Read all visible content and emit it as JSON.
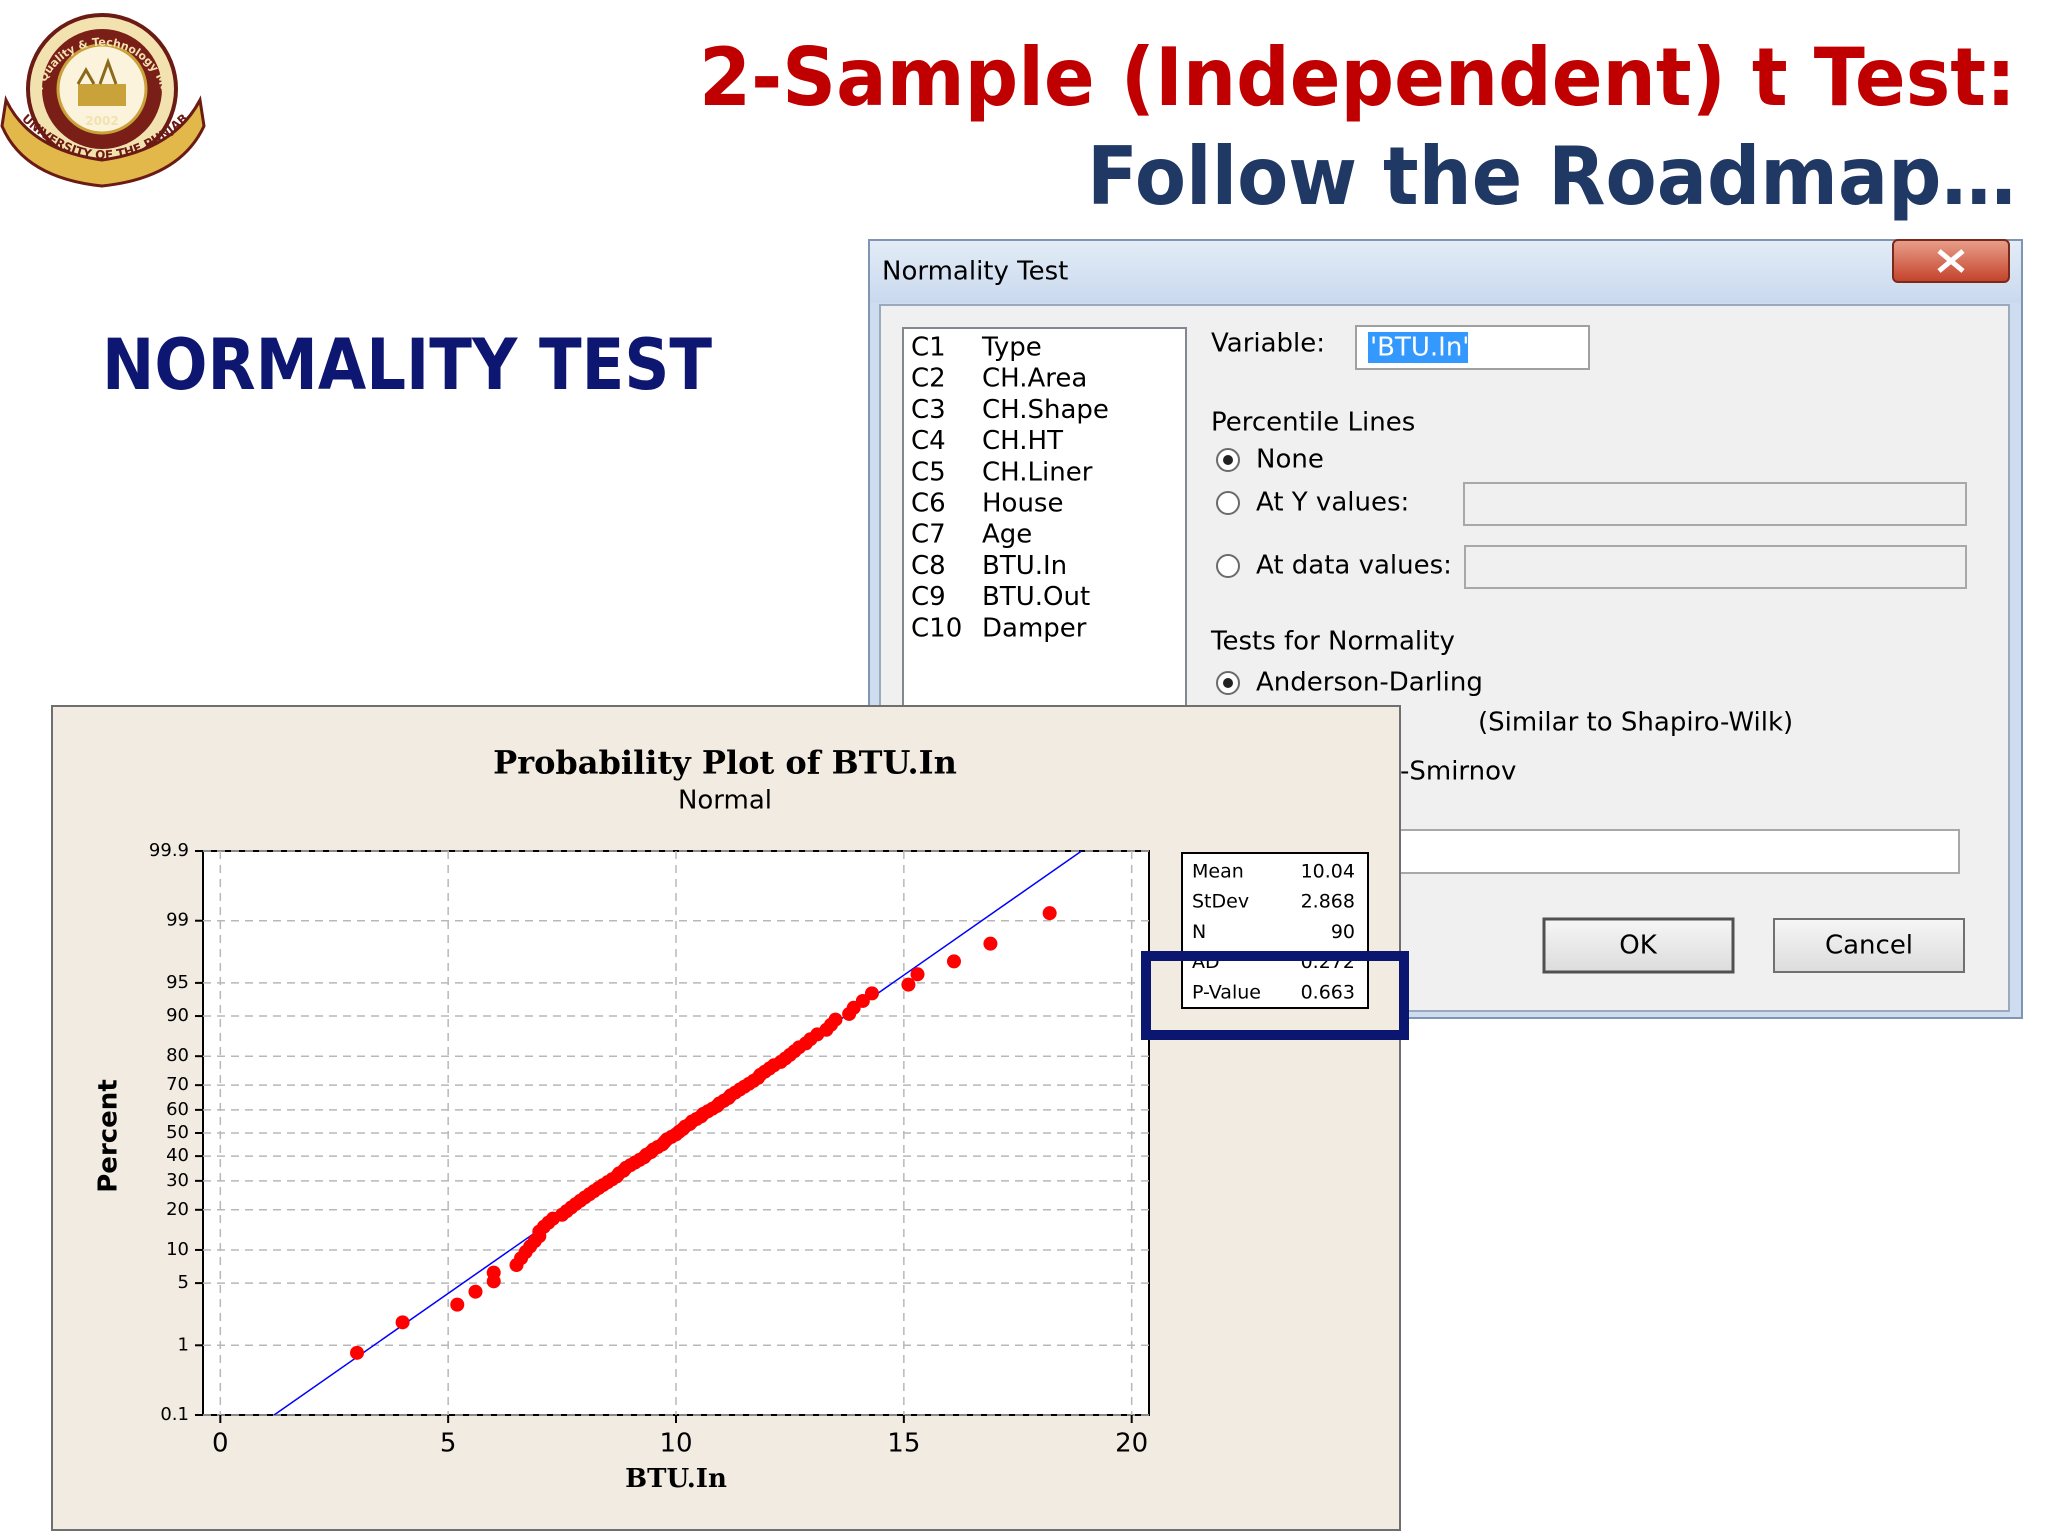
{
  "header": {
    "title_line1": "2-Sample (Independent) t Test:",
    "title_line2": "Follow the Roadmap…",
    "logo_top": "Institute of Quality & Technology Management",
    "logo_year": "2002",
    "logo_bottom": "UNIVERSITY OF THE PUNJAB"
  },
  "section_title": "NORMALITY TEST",
  "dialog": {
    "title": "Normality Test",
    "columns": [
      {
        "id": "C1",
        "name": "Type"
      },
      {
        "id": "C2",
        "name": "CH.Area"
      },
      {
        "id": "C3",
        "name": "CH.Shape"
      },
      {
        "id": "C4",
        "name": "CH.HT"
      },
      {
        "id": "C5",
        "name": "CH.Liner"
      },
      {
        "id": "C6",
        "name": "House"
      },
      {
        "id": "C7",
        "name": "Age"
      },
      {
        "id": "C8",
        "name": "BTU.In"
      },
      {
        "id": "C9",
        "name": "BTU.Out"
      },
      {
        "id": "C10",
        "name": "Damper"
      }
    ],
    "variable_label": "Variable:",
    "variable_value": "'BTU.In'",
    "percentile_lines": "Percentile Lines",
    "options_percentile": [
      "None",
      "At Y values:",
      "At data values:"
    ],
    "tests_label": "Tests for Normality",
    "options_tests": [
      "Anderson-Darling"
    ],
    "tests_note": "(Similar to Shapiro-Wilk)",
    "tests_partial": "-Smirnov",
    "ok": "OK",
    "cancel": "Cancel"
  },
  "chart_data": {
    "type": "scatter",
    "title": "Probability Plot of BTU.In",
    "subtitle": "Normal",
    "x_label": "BTU.In",
    "y_label": "Percent",
    "y_scale": "normal-probability",
    "grid": true,
    "color": "#ff0000",
    "x": [
      3.0,
      4.0,
      5.2,
      5.6,
      6.0,
      6.0,
      6.5,
      6.6,
      6.7,
      6.8,
      6.9,
      7.0,
      7.0,
      7.1,
      7.2,
      7.3,
      7.5,
      7.6,
      7.7,
      7.8,
      7.9,
      8.0,
      8.1,
      8.2,
      8.3,
      8.4,
      8.5,
      8.6,
      8.7,
      8.75,
      8.85,
      8.9,
      9.0,
      9.1,
      9.2,
      9.3,
      9.35,
      9.45,
      9.5,
      9.6,
      9.7,
      9.75,
      9.8,
      9.9,
      10.0,
      10.07,
      10.15,
      10.2,
      10.3,
      10.35,
      10.45,
      10.55,
      10.6,
      10.7,
      10.8,
      10.9,
      10.95,
      11.05,
      11.15,
      11.2,
      11.3,
      11.4,
      11.5,
      11.6,
      11.7,
      11.8,
      11.85,
      11.95,
      12.05,
      12.15,
      12.3,
      12.4,
      12.5,
      12.6,
      12.7,
      12.85,
      12.95,
      13.1,
      13.3,
      13.4,
      13.5,
      13.8,
      13.9,
      14.1,
      14.3,
      15.1,
      15.3,
      16.1,
      16.9,
      18.2
    ],
    "values": [
      0.8,
      1.9,
      3.0,
      4.1,
      5.2,
      6.3,
      7.4,
      8.5,
      9.6,
      10.7,
      11.8,
      12.9,
      14.0,
      15.2,
      16.3,
      17.4,
      18.5,
      19.6,
      20.7,
      21.8,
      22.9,
      24.0,
      25.1,
      26.2,
      27.3,
      28.4,
      29.5,
      30.6,
      31.7,
      32.9,
      34.0,
      35.1,
      36.2,
      37.3,
      38.4,
      39.5,
      40.6,
      41.7,
      42.8,
      43.9,
      45.0,
      46.1,
      47.2,
      48.3,
      49.4,
      50.6,
      51.7,
      52.8,
      53.9,
      55.0,
      56.1,
      57.2,
      58.3,
      59.4,
      60.5,
      61.6,
      62.7,
      63.8,
      64.9,
      66.0,
      67.1,
      68.3,
      69.4,
      70.5,
      71.6,
      72.7,
      73.8,
      74.9,
      76.0,
      77.1,
      78.2,
      79.3,
      80.4,
      81.5,
      82.6,
      83.7,
      84.8,
      86.0,
      87.1,
      88.2,
      89.3,
      90.4,
      91.5,
      92.6,
      93.7,
      94.8,
      95.9,
      97.0,
      98.1,
      99.2
    ],
    "fit_line": {
      "x": [
        1.18,
        18.9
      ],
      "values": [
        0.1,
        99.9
      ],
      "color": "#0000ff"
    },
    "xlim": [
      -0.38,
      20.38
    ],
    "xticks": [
      0,
      5,
      10,
      15,
      20
    ],
    "ylim": [
      0.1,
      99.9
    ],
    "yticks": [
      0.1,
      1,
      5,
      10,
      20,
      30,
      40,
      50,
      60,
      70,
      80,
      90,
      95,
      99,
      99.9
    ],
    "stats": [
      {
        "label": "Mean",
        "value": 10.04
      },
      {
        "label": "StDev",
        "value": 2.868
      },
      {
        "label": "N",
        "value": 90
      },
      {
        "label": "AD",
        "value": 0.272
      },
      {
        "label": "P-Value",
        "value": 0.663
      }
    ],
    "highlight_color": "#0b1670"
  }
}
